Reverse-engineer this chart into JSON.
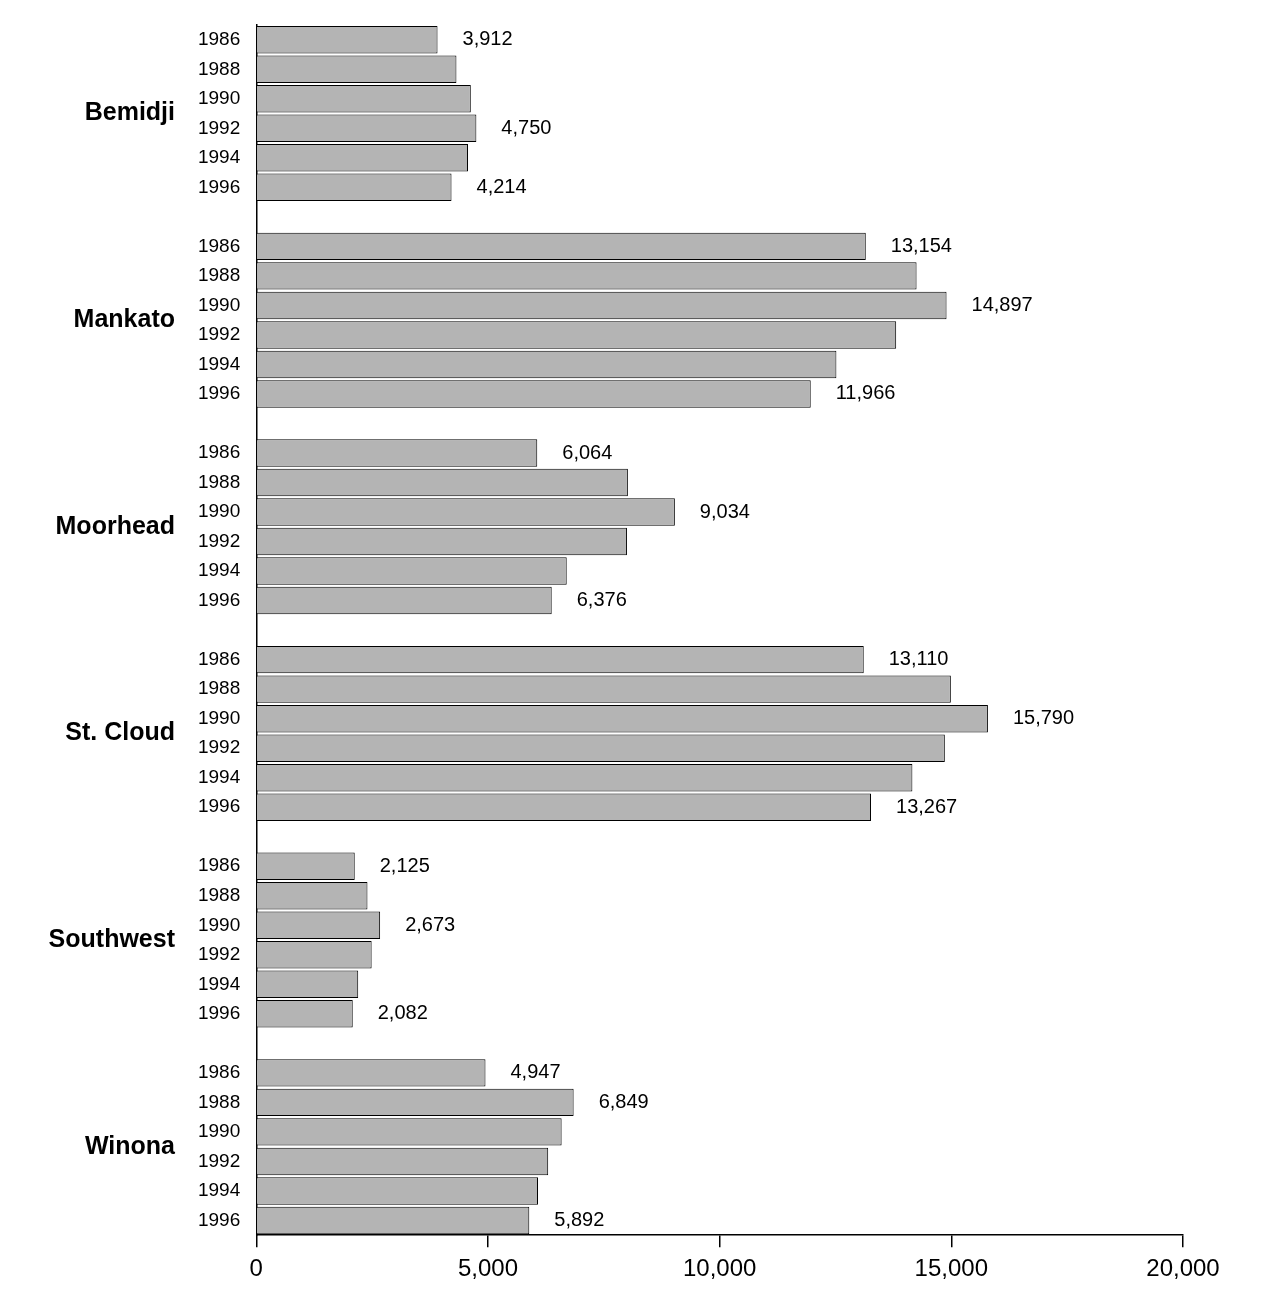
{
  "chart_data": {
    "type": "bar",
    "orientation": "horizontal",
    "categories": [
      "1986",
      "1988",
      "1990",
      "1992",
      "1994",
      "1996",
      null,
      "1986",
      "1988",
      "1990",
      "1992",
      "1994",
      "1996",
      null,
      "1986",
      "1988",
      "1990",
      "1992",
      "1994",
      "1996",
      null,
      "1986",
      "1988",
      "1990",
      "1992",
      "1994",
      "1996",
      null,
      "1986",
      "1988",
      "1990",
      "1992",
      "1994",
      "1996",
      null,
      "1986",
      "1988",
      "1990",
      "1992",
      "1994",
      "1996"
    ],
    "values": [
      3912,
      4320,
      4630,
      4750,
      4570,
      4214,
      null,
      13154,
      14250,
      14897,
      13810,
      12520,
      11966,
      null,
      6064,
      8020,
      9034,
      8000,
      6700,
      6376,
      null,
      13110,
      14990,
      15790,
      14860,
      14160,
      13267,
      null,
      2125,
      2400,
      2673,
      2490,
      2200,
      2082,
      null,
      4947,
      6849,
      6590,
      6300,
      6080,
      5892
    ],
    "value_labels": [
      "3,912",
      null,
      null,
      "4,750",
      null,
      "4,214",
      null,
      "13,154",
      null,
      "14,897",
      null,
      null,
      "11,966",
      null,
      "6,064",
      null,
      "9,034",
      null,
      null,
      "6,376",
      null,
      "13,110",
      null,
      "15,790",
      null,
      null,
      "13,267",
      null,
      "2,125",
      null,
      "2,673",
      null,
      null,
      "2,082",
      null,
      "4,947",
      "6,849",
      null,
      null,
      null,
      "5,892"
    ],
    "color": "#b4b4b4",
    "annotations": [
      "Bemidji",
      "Mankato",
      "Moorhead",
      "St. Cloud",
      "Southwest",
      "Winona"
    ],
    "xlim": [
      0,
      20000
    ],
    "xticks": [
      {
        "value": 0,
        "label": "0"
      },
      {
        "value": 5000,
        "label": "5,000"
      },
      {
        "value": 10000,
        "label": "10,000"
      },
      {
        "value": 15000,
        "label": "15,000"
      },
      {
        "value": 20000,
        "label": "20,000"
      }
    ]
  }
}
